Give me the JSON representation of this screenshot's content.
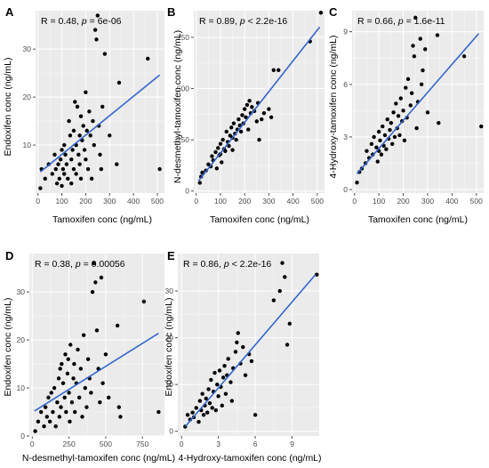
{
  "chart_data": [
    {
      "panel": "A",
      "type": "scatter",
      "annotation": {
        "r": "R = 0.48",
        "p_prefix": ", ",
        "p_label": "p",
        "p_value": " = 6e-06"
      },
      "xlabel": "Tamoxifen conc (ng/mL)",
      "ylabel": "Endoxifen conc (ng/mL)",
      "xlim": [
        -10,
        530
      ],
      "ylim": [
        0,
        38
      ],
      "xticks": [
        0,
        100,
        200,
        300,
        400,
        500
      ],
      "xticklabels": [
        "0",
        "100",
        "200",
        "300",
        "400",
        "500"
      ],
      "yticks": [
        10,
        20,
        30
      ],
      "yticklabels": [
        "10",
        "20",
        "30"
      ],
      "fit": {
        "x": [
          10,
          510
        ],
        "y": [
          4.4,
          24.6
        ]
      },
      "points": [
        [
          10,
          1.0
        ],
        [
          15,
          5
        ],
        [
          30,
          3
        ],
        [
          45,
          6
        ],
        [
          60,
          4
        ],
        [
          70,
          8
        ],
        [
          75,
          5
        ],
        [
          80,
          2
        ],
        [
          85,
          6
        ],
        [
          90,
          3
        ],
        [
          95,
          7
        ],
        [
          100,
          9
        ],
        [
          100,
          1.5
        ],
        [
          105,
          5
        ],
        [
          110,
          4
        ],
        [
          110,
          10
        ],
        [
          115,
          8
        ],
        [
          120,
          6
        ],
        [
          125,
          3
        ],
        [
          130,
          15
        ],
        [
          135,
          12
        ],
        [
          140,
          7
        ],
        [
          140,
          2
        ],
        [
          145,
          9
        ],
        [
          150,
          13
        ],
        [
          150,
          5
        ],
        [
          155,
          19
        ],
        [
          160,
          10
        ],
        [
          160,
          4
        ],
        [
          165,
          18
        ],
        [
          170,
          8
        ],
        [
          175,
          12
        ],
        [
          175,
          6
        ],
        [
          180,
          16
        ],
        [
          180,
          3
        ],
        [
          185,
          11
        ],
        [
          190,
          14
        ],
        [
          195,
          9
        ],
        [
          200,
          21
        ],
        [
          200,
          7
        ],
        [
          205,
          13
        ],
        [
          210,
          5
        ],
        [
          215,
          17
        ],
        [
          220,
          12
        ],
        [
          225,
          3
        ],
        [
          230,
          15
        ],
        [
          235,
          10
        ],
        [
          240,
          34
        ],
        [
          245,
          32
        ],
        [
          250,
          37
        ],
        [
          255,
          14
        ],
        [
          260,
          8
        ],
        [
          265,
          5
        ],
        [
          270,
          18
        ],
        [
          280,
          29
        ],
        [
          300,
          12
        ],
        [
          330,
          6
        ],
        [
          340,
          23
        ],
        [
          460,
          28
        ],
        [
          510,
          5
        ]
      ]
    },
    {
      "panel": "B",
      "type": "scatter",
      "annotation": {
        "r": "R = 0.89",
        "p_prefix": ", ",
        "p_label": "p",
        "p_value": " < 2.2e-16"
      },
      "xlabel": "Tamoxifen conc (ng/mL)",
      "ylabel": "N-desmethyl-tamoxifen conc (ng/mL)",
      "xlim": [
        -10,
        530
      ],
      "ylim": [
        -10,
        880
      ],
      "xticks": [
        0,
        100,
        200,
        300,
        400,
        500
      ],
      "xticklabels": [
        "0",
        "100",
        "200",
        "300",
        "400",
        "500"
      ],
      "yticks": [
        0,
        250,
        500,
        750
      ],
      "yticklabels": [
        "0",
        "250",
        "500",
        "750"
      ],
      "fit": {
        "x": [
          10,
          510
        ],
        "y": [
          50,
          800
        ]
      },
      "points": [
        [
          15,
          40
        ],
        [
          20,
          70
        ],
        [
          25,
          90
        ],
        [
          40,
          100
        ],
        [
          50,
          130
        ],
        [
          60,
          120
        ],
        [
          65,
          170
        ],
        [
          70,
          150
        ],
        [
          80,
          190
        ],
        [
          85,
          110
        ],
        [
          90,
          210
        ],
        [
          95,
          175
        ],
        [
          100,
          180
        ],
        [
          100,
          230
        ],
        [
          105,
          140
        ],
        [
          110,
          250
        ],
        [
          115,
          205
        ],
        [
          120,
          195
        ],
        [
          125,
          290
        ],
        [
          130,
          240
        ],
        [
          135,
          220
        ],
        [
          140,
          270
        ],
        [
          145,
          310
        ],
        [
          150,
          260
        ],
        [
          150,
          200
        ],
        [
          155,
          330
        ],
        [
          160,
          280
        ],
        [
          165,
          250
        ],
        [
          170,
          300
        ],
        [
          175,
          350
        ],
        [
          180,
          320
        ],
        [
          185,
          290
        ],
        [
          190,
          370
        ],
        [
          195,
          330
        ],
        [
          200,
          400
        ],
        [
          205,
          360
        ],
        [
          210,
          420
        ],
        [
          215,
          300
        ],
        [
          220,
          440
        ],
        [
          225,
          380
        ],
        [
          230,
          410
        ],
        [
          240,
          390
        ],
        [
          250,
          340
        ],
        [
          255,
          430
        ],
        [
          260,
          250
        ],
        [
          270,
          350
        ],
        [
          280,
          380
        ],
        [
          300,
          400
        ],
        [
          310,
          360
        ],
        [
          320,
          590
        ],
        [
          340,
          590
        ],
        [
          470,
          730
        ],
        [
          515,
          870
        ]
      ]
    },
    {
      "panel": "C",
      "type": "scatter",
      "annotation": {
        "r": "R = 0.66",
        "p_prefix": ", ",
        "p_label": "p",
        "p_value": " = 1.6e-11"
      },
      "xlabel": "Tamoxifen conc (ng/mL)",
      "ylabel": "4-Hydroxy-tamoxifen conc (ng/mL)",
      "xlim": [
        -10,
        530
      ],
      "ylim": [
        -0.2,
        10.2
      ],
      "xticks": [
        0,
        100,
        200,
        300,
        400,
        500
      ],
      "xticklabels": [
        "0",
        "100",
        "200",
        "300",
        "400",
        "500"
      ],
      "yticks": [
        0,
        3,
        6,
        9
      ],
      "yticklabels": [
        "0",
        "3",
        "6",
        "9"
      ],
      "fit": {
        "x": [
          10,
          510
        ],
        "y": [
          0.9,
          8.9
        ]
      },
      "points": [
        [
          10,
          0.4
        ],
        [
          20,
          1.0
        ],
        [
          30,
          1.2
        ],
        [
          45,
          1.5
        ],
        [
          50,
          2.2
        ],
        [
          60,
          1.8
        ],
        [
          70,
          2.6
        ],
        [
          75,
          2.0
        ],
        [
          80,
          3.0
        ],
        [
          90,
          2.4
        ],
        [
          95,
          1.6
        ],
        [
          100,
          3.3
        ],
        [
          100,
          2.2
        ],
        [
          105,
          2.8
        ],
        [
          110,
          2.0
        ],
        [
          115,
          3.6
        ],
        [
          120,
          2.5
        ],
        [
          125,
          3.1
        ],
        [
          130,
          2.3
        ],
        [
          135,
          4.0
        ],
        [
          140,
          2.9
        ],
        [
          145,
          3.4
        ],
        [
          150,
          3.8
        ],
        [
          155,
          2.6
        ],
        [
          160,
          4.4
        ],
        [
          165,
          3.0
        ],
        [
          170,
          4.9
        ],
        [
          175,
          3.5
        ],
        [
          180,
          4.2
        ],
        [
          185,
          3.1
        ],
        [
          190,
          5.2
        ],
        [
          195,
          3.9
        ],
        [
          200,
          4.5
        ],
        [
          205,
          2.8
        ],
        [
          210,
          5.8
        ],
        [
          215,
          4.1
        ],
        [
          220,
          6.3
        ],
        [
          230,
          4.8
        ],
        [
          235,
          5.5
        ],
        [
          240,
          8.2
        ],
        [
          245,
          7.6
        ],
        [
          250,
          9.8
        ],
        [
          255,
          3.5
        ],
        [
          260,
          5.0
        ],
        [
          270,
          8.6
        ],
        [
          275,
          6.0
        ],
        [
          280,
          6.8
        ],
        [
          290,
          8.0
        ],
        [
          300,
          4.4
        ],
        [
          340,
          8.8
        ],
        [
          345,
          3.8
        ],
        [
          450,
          7.6
        ],
        [
          520,
          3.6
        ]
      ]
    },
    {
      "panel": "D",
      "type": "scatter",
      "annotation": {
        "r": "R = 0.38",
        "p_prefix": ", ",
        "p_label": "p",
        "p_value": " = 0.00056"
      },
      "xlabel": "N-desmethyl-tamoxifen conc (ng/mL)",
      "ylabel": "Endoxifen conc (ng/mL)",
      "xlim": [
        -20,
        900
      ],
      "ylim": [
        0,
        38
      ],
      "xticks": [
        0,
        250,
        500,
        750
      ],
      "xticklabels": [
        "0",
        "250",
        "500",
        "750"
      ],
      "yticks": [
        0,
        10,
        20,
        30
      ],
      "yticklabels": [
        "0",
        "10",
        "20",
        "30"
      ],
      "fit": {
        "x": [
          15,
          860
        ],
        "y": [
          5.2,
          21.4
        ]
      },
      "points": [
        [
          20,
          1.0
        ],
        [
          40,
          3
        ],
        [
          60,
          5
        ],
        [
          80,
          2
        ],
        [
          90,
          6
        ],
        [
          100,
          4
        ],
        [
          110,
          8
        ],
        [
          120,
          3
        ],
        [
          130,
          9
        ],
        [
          140,
          5
        ],
        [
          150,
          10
        ],
        [
          160,
          2
        ],
        [
          170,
          7
        ],
        [
          180,
          12
        ],
        [
          185,
          4
        ],
        [
          190,
          14
        ],
        [
          195,
          6
        ],
        [
          200,
          15
        ],
        [
          210,
          11
        ],
        [
          220,
          8
        ],
        [
          225,
          17
        ],
        [
          230,
          5
        ],
        [
          240,
          13
        ],
        [
          245,
          16
        ],
        [
          250,
          9
        ],
        [
          255,
          3
        ],
        [
          260,
          19
        ],
        [
          270,
          7
        ],
        [
          280,
          12
        ],
        [
          285,
          15
        ],
        [
          290,
          5
        ],
        [
          300,
          11
        ],
        [
          310,
          18
        ],
        [
          320,
          8
        ],
        [
          330,
          14
        ],
        [
          340,
          4
        ],
        [
          350,
          21
        ],
        [
          360,
          10
        ],
        [
          370,
          6
        ],
        [
          380,
          16
        ],
        [
          390,
          12
        ],
        [
          400,
          9
        ],
        [
          410,
          30
        ],
        [
          420,
          36
        ],
        [
          430,
          32
        ],
        [
          440,
          22
        ],
        [
          450,
          14
        ],
        [
          460,
          7
        ],
        [
          470,
          33
        ],
        [
          480,
          11
        ],
        [
          500,
          17
        ],
        [
          520,
          8
        ],
        [
          580,
          23
        ],
        [
          590,
          6
        ],
        [
          600,
          4
        ],
        [
          760,
          28
        ],
        [
          860,
          5
        ]
      ]
    },
    {
      "panel": "E",
      "type": "scatter",
      "annotation": {
        "r": "R = 0.86",
        "p_prefix": ", ",
        "p_label": "p",
        "p_value": " < 2.2e-16"
      },
      "xlabel": "4-Hydroxy-tamoxifen conc (ng/mL)",
      "ylabel": "Endoxifen conc (ng/mL)",
      "xlim": [
        -0.3,
        11.2
      ],
      "ylim": [
        -1,
        38
      ],
      "xticks": [
        0,
        3,
        6,
        9
      ],
      "xticklabels": [
        "0",
        "3",
        "6",
        "9"
      ],
      "yticks": [
        0,
        10,
        20,
        30
      ],
      "yticklabels": [
        "0",
        "10",
        "20",
        "30"
      ],
      "fit": {
        "x": [
          0.3,
          10.9
        ],
        "y": [
          1.0,
          33.5
        ]
      },
      "points": [
        [
          0.3,
          1.0
        ],
        [
          0.5,
          3.5
        ],
        [
          0.7,
          2.5
        ],
        [
          0.9,
          4.0
        ],
        [
          1.0,
          3.0
        ],
        [
          1.2,
          5.0
        ],
        [
          1.4,
          2.0
        ],
        [
          1.5,
          6.5
        ],
        [
          1.6,
          4.5
        ],
        [
          1.7,
          8.0
        ],
        [
          1.8,
          3.5
        ],
        [
          1.9,
          5.5
        ],
        [
          2.0,
          7.0
        ],
        [
          2.1,
          4.0
        ],
        [
          2.2,
          9.0
        ],
        [
          2.3,
          6.0
        ],
        [
          2.4,
          11.0
        ],
        [
          2.5,
          5.0
        ],
        [
          2.6,
          8.5
        ],
        [
          2.7,
          12.5
        ],
        [
          2.8,
          4.5
        ],
        [
          2.9,
          10.0
        ],
        [
          3.0,
          7.5
        ],
        [
          3.1,
          13.0
        ],
        [
          3.2,
          9.5
        ],
        [
          3.3,
          5.5
        ],
        [
          3.4,
          11.5
        ],
        [
          3.5,
          14.0
        ],
        [
          3.6,
          8.0
        ],
        [
          3.7,
          12.0
        ],
        [
          3.8,
          15.5
        ],
        [
          4.0,
          10.5
        ],
        [
          4.1,
          6.5
        ],
        [
          4.2,
          13.5
        ],
        [
          4.4,
          17.0
        ],
        [
          4.5,
          19.0
        ],
        [
          4.6,
          21.0
        ],
        [
          4.8,
          14.5
        ],
        [
          5.0,
          18.0
        ],
        [
          5.2,
          12.0
        ],
        [
          5.5,
          16.5
        ],
        [
          5.7,
          15.0
        ],
        [
          6.0,
          3.5
        ],
        [
          7.5,
          28.0
        ],
        [
          8.0,
          30.0
        ],
        [
          8.2,
          36.0
        ],
        [
          8.4,
          33.0
        ],
        [
          8.6,
          18.5
        ],
        [
          8.8,
          23.0
        ],
        [
          11.0,
          33.5
        ]
      ]
    }
  ]
}
